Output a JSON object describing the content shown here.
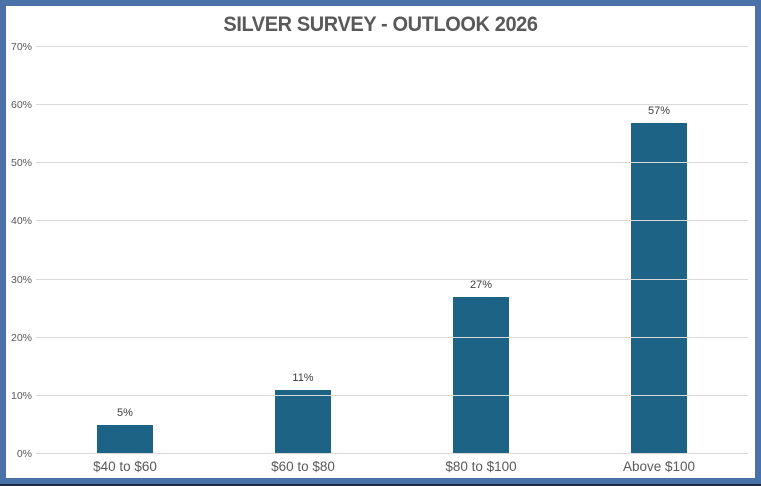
{
  "window": {
    "frame_border_color": "#4a72a8",
    "bottom_edge_color": "#1c2b47",
    "background_color": "#ffffff"
  },
  "chart_data": {
    "type": "bar",
    "title": "SILVER SURVEY - OUTLOOK 2026",
    "categories": [
      "$40 to $60",
      "$60 to $80",
      "$80 to $100",
      "Above $100"
    ],
    "values": [
      5,
      11,
      27,
      57
    ],
    "data_labels": [
      "5%",
      "11%",
      "27%",
      "57%"
    ],
    "xlabel": "",
    "ylabel": "",
    "ylim": [
      0,
      70
    ],
    "ytick_step": 10,
    "ytick_labels": [
      "0%",
      "10%",
      "20%",
      "30%",
      "40%",
      "50%",
      "60%",
      "70%"
    ],
    "grid": true,
    "legend": false,
    "colors": {
      "bar": "#1c6386",
      "gridline": "#d9d9d9",
      "title_text": "#595959",
      "ytick_text": "#595959",
      "category_text": "#595959",
      "data_label_text": "#404040"
    }
  }
}
